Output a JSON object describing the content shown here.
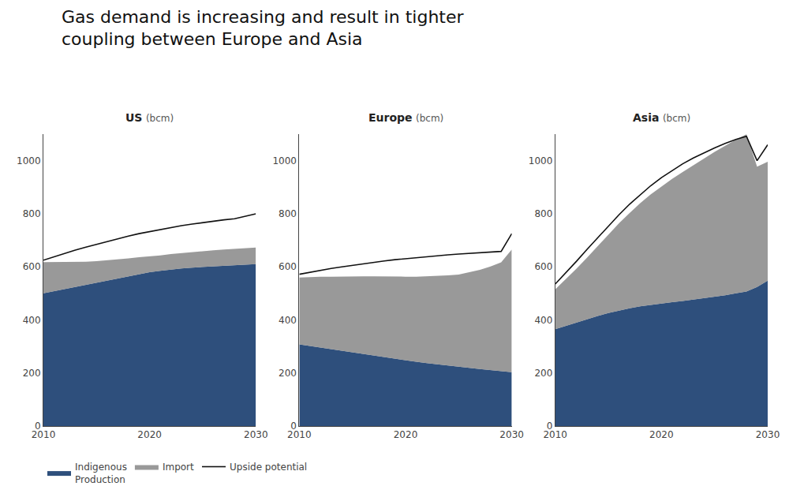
{
  "title": "Gas demand is increasing and result in tighter\ncoupling between Europe and Asia",
  "chart_data": [
    {
      "type": "area",
      "title": "US",
      "subtitle": "(bcm)",
      "stacked": true,
      "grid": false,
      "legend": "bottom",
      "x": [
        2010,
        2011,
        2012,
        2013,
        2014,
        2015,
        2016,
        2017,
        2018,
        2019,
        2020,
        2021,
        2022,
        2023,
        2024,
        2025,
        2026,
        2027,
        2028,
        2029,
        2030
      ],
      "xlim": [
        2010,
        2030
      ],
      "xticks": [
        2010,
        2020,
        2030
      ],
      "ylim": [
        0,
        1100
      ],
      "yticks": [
        0,
        200,
        400,
        600,
        800,
        1000
      ],
      "series": [
        {
          "name": "Indigenous\nProduction",
          "type": "area",
          "color": "#2e4f7c",
          "values": [
            500,
            508,
            516,
            524,
            533,
            541,
            550,
            558,
            566,
            574,
            580,
            585,
            590,
            594,
            597,
            599,
            601,
            603,
            605,
            608,
            610
          ]
        },
        {
          "name": "Import",
          "type": "area",
          "color": "#7f7f7f",
          "values": [
            118,
            110,
            102,
            94,
            86,
            80,
            74,
            70,
            66,
            62,
            59,
            58,
            58,
            58,
            59,
            60,
            61,
            62,
            63,
            63,
            63
          ]
        },
        {
          "name": "Upside potential",
          "type": "line",
          "color": "#111111",
          "values": [
            625,
            638,
            651,
            663,
            674,
            685,
            696,
            706,
            716,
            725,
            733,
            741,
            748,
            755,
            761,
            767,
            772,
            777,
            781,
            791,
            800
          ]
        }
      ]
    },
    {
      "type": "area",
      "title": "Europe",
      "subtitle": "(bcm)",
      "stacked": true,
      "grid": false,
      "legend": "bottom",
      "x": [
        2010,
        2011,
        2012,
        2013,
        2014,
        2015,
        2016,
        2017,
        2018,
        2019,
        2020,
        2021,
        2022,
        2023,
        2024,
        2025,
        2026,
        2027,
        2028,
        2029,
        2030
      ],
      "xlim": [
        2010,
        2030
      ],
      "xticks": [
        2010,
        2020,
        2030
      ],
      "ylim": [
        0,
        1100
      ],
      "yticks": [
        0,
        200,
        400,
        600,
        800,
        1000
      ],
      "series": [
        {
          "name": "Indigenous\nProduction",
          "type": "area",
          "color": "#2e4f7c",
          "values": [
            308,
            302,
            296,
            289,
            283,
            276,
            270,
            264,
            258,
            252,
            247,
            242,
            237,
            232,
            228,
            223,
            219,
            215,
            211,
            207,
            203
          ]
        },
        {
          "name": "Import",
          "type": "area",
          "color": "#7f7f7f",
          "values": [
            252,
            260,
            267,
            274,
            281,
            288,
            294,
            300,
            305,
            311,
            316,
            321,
            327,
            333,
            340,
            348,
            360,
            374,
            390,
            410,
            462
          ]
        },
        {
          "name": "Upside potential",
          "type": "line",
          "color": "#111111",
          "values": [
            572,
            580,
            587,
            594,
            600,
            606,
            612,
            617,
            622,
            627,
            631,
            635,
            639,
            642,
            645,
            648,
            651,
            654,
            656,
            658,
            725
          ]
        }
      ]
    },
    {
      "type": "area",
      "title": "Asia",
      "subtitle": "(bcm)",
      "stacked": true,
      "grid": false,
      "legend": "bottom",
      "x": [
        2010,
        2011,
        2012,
        2013,
        2014,
        2015,
        2016,
        2017,
        2018,
        2019,
        2020,
        2021,
        2022,
        2023,
        2024,
        2025,
        2026,
        2027,
        2028,
        2029,
        2030
      ],
      "xlim": [
        2010,
        2030
      ],
      "xticks": [
        2010,
        2020,
        2030
      ],
      "ylim": [
        0,
        1100
      ],
      "yticks": [
        0,
        200,
        400,
        600,
        800,
        1000
      ],
      "series": [
        {
          "name": "Indigenous\nProduction",
          "type": "area",
          "color": "#2e4f7c",
          "values": [
            365,
            378,
            391,
            403,
            415,
            426,
            436,
            444,
            451,
            457,
            462,
            467,
            471,
            476,
            481,
            487,
            493,
            500,
            507,
            524,
            548
          ]
        },
        {
          "name": "Import",
          "type": "area",
          "color": "#7f7f7f",
          "values": [
            150,
            175,
            202,
            232,
            263,
            296,
            328,
            359,
            389,
            416,
            441,
            464,
            486,
            507,
            527,
            546,
            563,
            579,
            592,
            453,
            448
          ]
        },
        {
          "name": "Upside potential",
          "type": "line",
          "color": "#111111",
          "values": [
            535,
            577,
            621,
            666,
            710,
            754,
            796,
            836,
            872,
            906,
            936,
            963,
            988,
            1010,
            1030,
            1048,
            1065,
            1080,
            1092,
            1000,
            1060
          ]
        }
      ]
    }
  ]
}
